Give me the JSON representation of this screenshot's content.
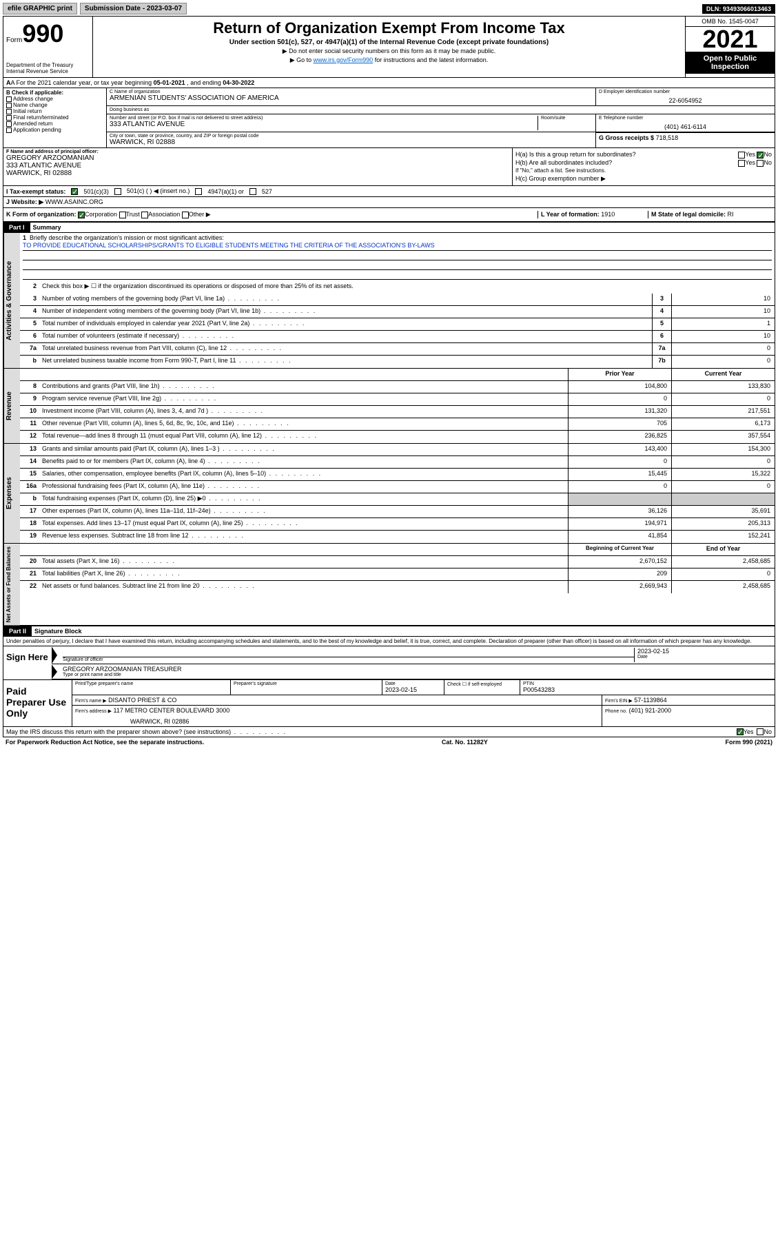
{
  "topbar": {
    "efile": "efile GRAPHIC print",
    "sub_label": "Submission Date - 2023-03-07",
    "dln": "DLN: 93493066013463"
  },
  "header": {
    "form_prefix": "Form",
    "form_number": "990",
    "dept": "Department of the Treasury\nInternal Revenue Service",
    "title": "Return of Organization Exempt From Income Tax",
    "subtitle": "Under section 501(c), 527, or 4947(a)(1) of the Internal Revenue Code (except private foundations)",
    "note1": "▶ Do not enter social security numbers on this form as it may be made public.",
    "note2_pre": "▶ Go to ",
    "note2_link": "www.irs.gov/Form990",
    "note2_post": " for instructions and the latest information.",
    "omb": "OMB No. 1545-0047",
    "year": "2021",
    "open": "Open to Public Inspection"
  },
  "row_a": {
    "text_pre": "A For the 2021 calendar year, or tax year beginning ",
    "begin": "05-01-2021",
    "mid": " , and ending ",
    "end": "04-30-2022"
  },
  "col_b": {
    "label": "B Check if applicable:",
    "items": [
      "Address change",
      "Name change",
      "Initial return",
      "Final return/terminated",
      "Amended return",
      "Application pending"
    ]
  },
  "col_c": {
    "name_label": "C Name of organization",
    "name": "ARMENIAN STUDENTS' ASSOCIATION OF AMERICA",
    "dba_label": "Doing business as",
    "dba": "",
    "addr_label": "Number and street (or P.O. box if mail is not delivered to street address)",
    "addr": "333 ATLANTIC AVENUE",
    "room_label": "Room/suite",
    "city_label": "City or town, state or province, country, and ZIP or foreign postal code",
    "city": "WARWICK, RI  02888"
  },
  "col_d": {
    "label": "D Employer identification number",
    "val": "22-6054952"
  },
  "col_e": {
    "label": "E Telephone number",
    "val": "(401) 461-6114"
  },
  "col_g": {
    "label": "G Gross receipts $",
    "val": "718,518"
  },
  "col_f": {
    "label": "F Name and address of principal officer:",
    "name": "GREGORY ARZOOMANIAN",
    "addr1": "333 ATLANTIC AVENUE",
    "addr2": "WARWICK, RI  02888"
  },
  "col_h": {
    "ha": "H(a)  Is this a group return for subordinates?",
    "hb": "H(b)  Are all subordinates included?",
    "hb_note": "If \"No,\" attach a list. See instructions.",
    "hc": "H(c)  Group exemption number ▶",
    "yes": "Yes",
    "no": "No"
  },
  "row_i": {
    "label": "I   Tax-exempt status:",
    "o1": "501(c)(3)",
    "o2": "501(c) (   ) ◀ (insert no.)",
    "o3": "4947(a)(1) or",
    "o4": "527"
  },
  "row_j": {
    "label": "J   Website: ▶",
    "val": "WWW.ASAINC.ORG"
  },
  "row_k": {
    "label": "K Form of organization:",
    "o1": "Corporation",
    "o2": "Trust",
    "o3": "Association",
    "o4": "Other ▶",
    "l_label": "L Year of formation:",
    "l_val": "1910",
    "m_label": "M State of legal domicile:",
    "m_val": "RI"
  },
  "part1": {
    "hdr": "Part I",
    "title": "Summary",
    "q1_label": "1",
    "q1": "Briefly describe the organization's mission or most significant activities:",
    "mission": "TO PROVIDE EDUCATIONAL SCHOLARSHIPS/GRANTS TO ELIGIBLE STUDENTS MEETING THE CRITERIA OF THE ASSOCIATION'S BY-LAWS",
    "q2_label": "2",
    "q2": "Check this box ▶ ☐ if the organization discontinued its operations or disposed of more than 25% of its net assets."
  },
  "vtabs": {
    "gov": "Activities & Governance",
    "rev": "Revenue",
    "exp": "Expenses",
    "net": "Net Assets or Fund Balances"
  },
  "lines_gov": [
    {
      "n": "3",
      "t": "Number of voting members of the governing body (Part VI, line 1a)",
      "box": "3",
      "v": "10"
    },
    {
      "n": "4",
      "t": "Number of independent voting members of the governing body (Part VI, line 1b)",
      "box": "4",
      "v": "10"
    },
    {
      "n": "5",
      "t": "Total number of individuals employed in calendar year 2021 (Part V, line 2a)",
      "box": "5",
      "v": "1"
    },
    {
      "n": "6",
      "t": "Total number of volunteers (estimate if necessary)",
      "box": "6",
      "v": "10"
    },
    {
      "n": "7a",
      "t": "Total unrelated business revenue from Part VIII, column (C), line 12",
      "box": "7a",
      "v": "0"
    },
    {
      "n": "b",
      "t": "Net unrelated business taxable income from Form 990-T, Part I, line 11",
      "box": "7b",
      "v": "0"
    }
  ],
  "two_col_hdr": {
    "prior": "Prior Year",
    "current": "Current Year"
  },
  "lines_rev": [
    {
      "n": "8",
      "t": "Contributions and grants (Part VIII, line 1h)",
      "p": "104,800",
      "c": "133,830"
    },
    {
      "n": "9",
      "t": "Program service revenue (Part VIII, line 2g)",
      "p": "0",
      "c": "0"
    },
    {
      "n": "10",
      "t": "Investment income (Part VIII, column (A), lines 3, 4, and 7d )",
      "p": "131,320",
      "c": "217,551"
    },
    {
      "n": "11",
      "t": "Other revenue (Part VIII, column (A), lines 5, 6d, 8c, 9c, 10c, and 11e)",
      "p": "705",
      "c": "6,173"
    },
    {
      "n": "12",
      "t": "Total revenue—add lines 8 through 11 (must equal Part VIII, column (A), line 12)",
      "p": "236,825",
      "c": "357,554"
    }
  ],
  "lines_exp": [
    {
      "n": "13",
      "t": "Grants and similar amounts paid (Part IX, column (A), lines 1–3 )",
      "p": "143,400",
      "c": "154,300"
    },
    {
      "n": "14",
      "t": "Benefits paid to or for members (Part IX, column (A), line 4)",
      "p": "0",
      "c": "0"
    },
    {
      "n": "15",
      "t": "Salaries, other compensation, employee benefits (Part IX, column (A), lines 5–10)",
      "p": "15,445",
      "c": "15,322"
    },
    {
      "n": "16a",
      "t": "Professional fundraising fees (Part IX, column (A), line 11e)",
      "p": "0",
      "c": "0"
    },
    {
      "n": "b",
      "t": "Total fundraising expenses (Part IX, column (D), line 25) ▶0",
      "p": "",
      "c": "",
      "shaded": true
    },
    {
      "n": "17",
      "t": "Other expenses (Part IX, column (A), lines 11a–11d, 11f–24e)",
      "p": "36,126",
      "c": "35,691"
    },
    {
      "n": "18",
      "t": "Total expenses. Add lines 13–17 (must equal Part IX, column (A), line 25)",
      "p": "194,971",
      "c": "205,313"
    },
    {
      "n": "19",
      "t": "Revenue less expenses. Subtract line 18 from line 12",
      "p": "41,854",
      "c": "152,241"
    }
  ],
  "two_col_hdr2": {
    "prior": "Beginning of Current Year",
    "current": "End of Year"
  },
  "lines_net": [
    {
      "n": "20",
      "t": "Total assets (Part X, line 16)",
      "p": "2,670,152",
      "c": "2,458,685"
    },
    {
      "n": "21",
      "t": "Total liabilities (Part X, line 26)",
      "p": "209",
      "c": "0"
    },
    {
      "n": "22",
      "t": "Net assets or fund balances. Subtract line 21 from line 20",
      "p": "2,669,943",
      "c": "2,458,685"
    }
  ],
  "part2": {
    "hdr": "Part II",
    "title": "Signature Block",
    "decl": "Under penalties of perjury, I declare that I have examined this return, including accompanying schedules and statements, and to the best of my knowledge and belief, it is true, correct, and complete. Declaration of preparer (other than officer) is based on all information of which preparer has any knowledge."
  },
  "sign": {
    "here": "Sign Here",
    "sig_label": "Signature of officer",
    "date_label": "Date",
    "date": "2023-02-15",
    "name": "GREGORY ARZOOMANIAN  TREASURER",
    "name_label": "Type or print name and title"
  },
  "paid": {
    "label": "Paid Preparer Use Only",
    "h1": "Print/Type preparer's name",
    "h2": "Preparer's signature",
    "h3": "Date",
    "h4": "Check ☐ if self-employed",
    "h5": "PTIN",
    "date": "2023-02-15",
    "ptin": "P00543283",
    "firm_label": "Firm's name   ▶",
    "firm": "DISANTO PRIEST & CO",
    "ein_label": "Firm's EIN ▶",
    "ein": "57-1139864",
    "addr_label": "Firm's address ▶",
    "addr1": "117 METRO CENTER BOULEVARD 3000",
    "addr2": "WARWICK, RI  02886",
    "phone_label": "Phone no.",
    "phone": "(401) 921-2000"
  },
  "footer": {
    "q": "May the IRS discuss this return with the preparer shown above? (see instructions)",
    "yes": "Yes",
    "no": "No",
    "pra": "For Paperwork Reduction Act Notice, see the separate instructions.",
    "cat": "Cat. No. 11282Y",
    "form": "Form 990 (2021)"
  }
}
